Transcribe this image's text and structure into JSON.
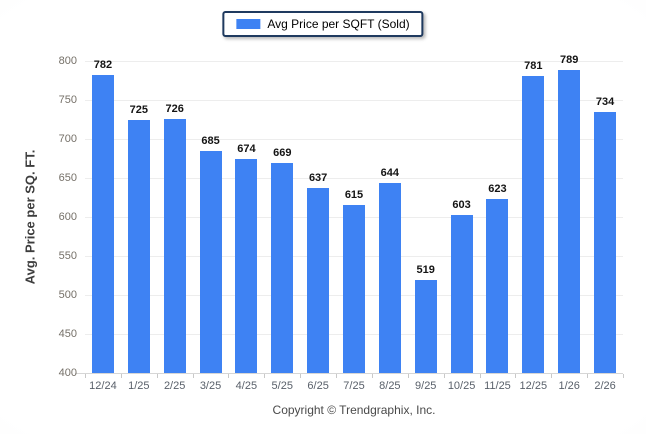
{
  "legend": {
    "label": "Avg Price per SQFT (Sold)"
  },
  "colors": {
    "bar": "#3E82F3",
    "legend_border": "#1F3A5F",
    "gridline": "#EDEDED",
    "axis_line": "#D6D6D6"
  },
  "chart_data": {
    "type": "bar",
    "title": "Avg Price per SQFT (Sold)",
    "categories": [
      "12/24",
      "1/25",
      "2/25",
      "3/25",
      "4/25",
      "5/25",
      "6/25",
      "7/25",
      "8/25",
      "9/25",
      "10/25",
      "11/25",
      "12/25",
      "1/26",
      "2/26"
    ],
    "values": [
      782,
      725,
      726,
      685,
      674,
      669,
      637,
      615,
      644,
      519,
      603,
      623,
      781,
      789,
      734
    ],
    "xlabel": "",
    "ylabel": "Avg. Price per SQ. FT.",
    "ylim": [
      400,
      800
    ],
    "ytick_step": 50,
    "yticks": [
      400,
      450,
      500,
      550,
      600,
      650,
      700,
      750,
      800
    ],
    "grid": "horizontal",
    "legend_position": "top-center",
    "value_labels": true,
    "bar_color": "#3E82F3"
  },
  "footer": {
    "copyright": "Copyright © Trendgraphix, Inc."
  }
}
